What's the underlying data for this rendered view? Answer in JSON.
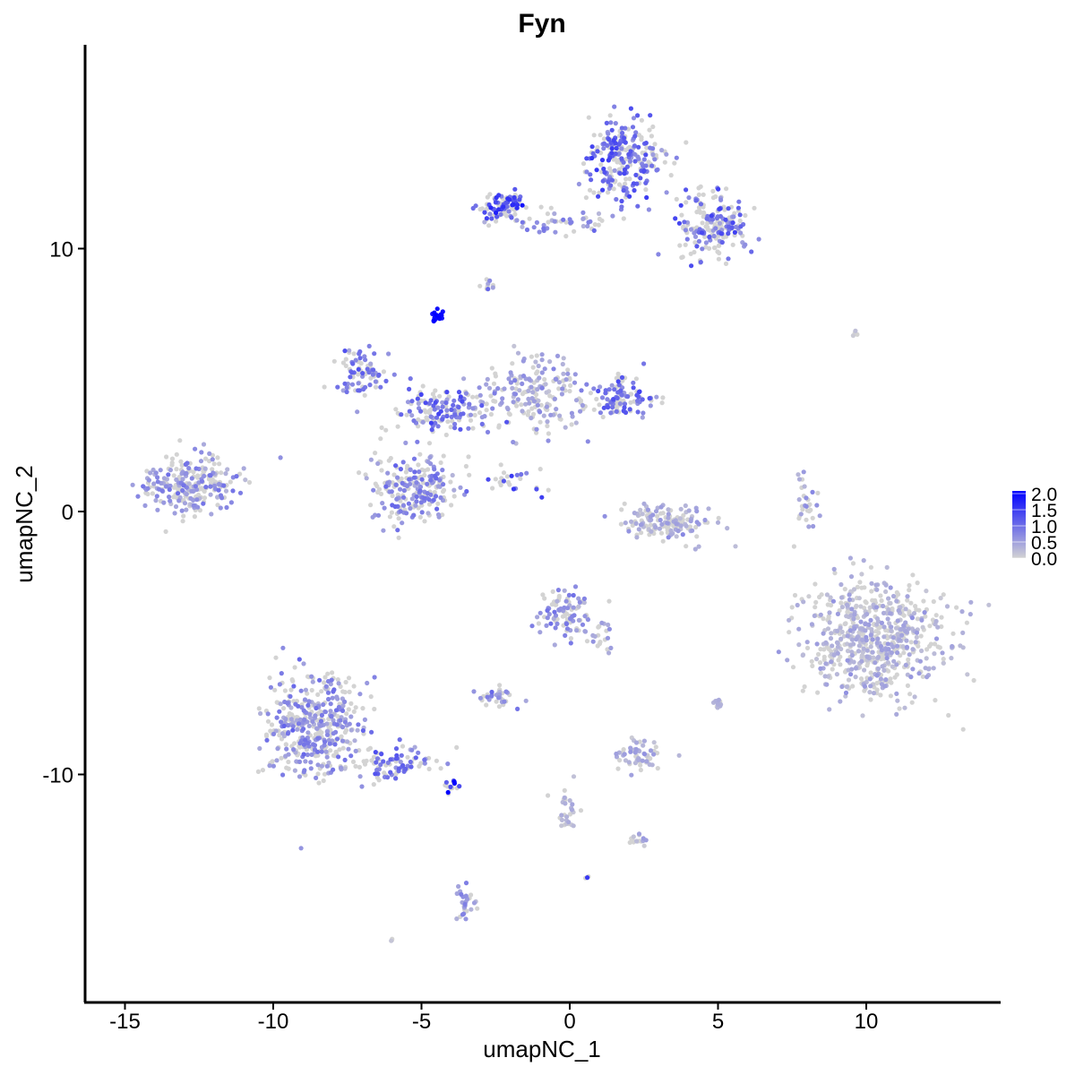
{
  "chart_data": {
    "type": "scatter",
    "title": "Fyn",
    "xlabel": "umapNC_1",
    "ylabel": "umapNC_2",
    "xlim": [
      -16.2,
      14.5
    ],
    "ylim": [
      -18.5,
      17.8
    ],
    "xticks": [
      -15,
      -10,
      -5,
      0,
      5,
      10
    ],
    "xtick_labels": [
      "-15",
      "-10",
      "-5",
      "0",
      "5",
      "10"
    ],
    "yticks": [
      -10,
      0,
      10
    ],
    "ytick_labels": [
      "-10",
      "0",
      "10"
    ],
    "grid": false,
    "legend": {
      "placement": "right",
      "type": "colorbar",
      "range": [
        0,
        2.0
      ],
      "ticks": [
        "0.0",
        "0.5",
        "1.0",
        "1.5",
        "2.0"
      ],
      "low_color": "#d3d3d3",
      "high_color": "#0000ff"
    },
    "clusters": [
      {
        "center": [
          -12.8,
          1.0
        ],
        "spread": [
          1.0,
          0.65
        ],
        "n": 260,
        "mean_expression": 0.55
      },
      {
        "center": [
          1.9,
          13.4
        ],
        "spread": [
          0.8,
          1.0
        ],
        "n": 260,
        "mean_expression": 0.9
      },
      {
        "center": [
          4.8,
          10.9
        ],
        "spread": [
          0.8,
          0.8
        ],
        "n": 200,
        "mean_expression": 0.85
      },
      {
        "center": [
          -2.3,
          11.6
        ],
        "spread": [
          0.5,
          0.35
        ],
        "n": 90,
        "mean_expression": 1.15
      },
      {
        "center": [
          -0.2,
          11.0
        ],
        "spread": [
          1.3,
          0.25
        ],
        "n": 50,
        "mean_expression": 0.6
      },
      {
        "center": [
          -4.5,
          7.4
        ],
        "spread": [
          0.15,
          0.15
        ],
        "n": 25,
        "mean_expression": 2.0
      },
      {
        "center": [
          -7.0,
          5.3
        ],
        "spread": [
          0.6,
          0.6
        ],
        "n": 80,
        "mean_expression": 0.8
      },
      {
        "center": [
          -4.3,
          3.8
        ],
        "spread": [
          1.0,
          0.5
        ],
        "n": 150,
        "mean_expression": 0.85
      },
      {
        "center": [
          -5.2,
          0.9
        ],
        "spread": [
          0.9,
          0.85
        ],
        "n": 230,
        "mean_expression": 0.65
      },
      {
        "center": [
          -1.2,
          4.5
        ],
        "spread": [
          1.0,
          0.9
        ],
        "n": 190,
        "mean_expression": 0.45
      },
      {
        "center": [
          1.6,
          4.3
        ],
        "spread": [
          0.8,
          0.5
        ],
        "n": 110,
        "mean_expression": 0.85
      },
      {
        "center": [
          -1.8,
          1.2
        ],
        "spread": [
          0.6,
          0.4
        ],
        "n": 25,
        "mean_expression": 1.0
      },
      {
        "center": [
          3.3,
          -0.5
        ],
        "spread": [
          0.9,
          0.45
        ],
        "n": 150,
        "mean_expression": 0.35
      },
      {
        "center": [
          8.0,
          0.4
        ],
        "spread": [
          0.2,
          0.6
        ],
        "n": 30,
        "mean_expression": 0.4
      },
      {
        "center": [
          10.3,
          -4.9
        ],
        "spread": [
          1.45,
          1.4
        ],
        "n": 650,
        "mean_expression": 0.3
      },
      {
        "center": [
          -8.6,
          -8.2
        ],
        "spread": [
          1.0,
          1.2
        ],
        "n": 420,
        "mean_expression": 0.6
      },
      {
        "center": [
          -5.8,
          -9.6
        ],
        "spread": [
          1.0,
          0.45
        ],
        "n": 90,
        "mean_expression": 0.8
      },
      {
        "center": [
          -4.0,
          -10.4
        ],
        "spread": [
          0.15,
          0.15
        ],
        "n": 15,
        "mean_expression": 1.5
      },
      {
        "center": [
          -0.2,
          -3.8
        ],
        "spread": [
          0.5,
          0.6
        ],
        "n": 100,
        "mean_expression": 0.6
      },
      {
        "center": [
          1.0,
          -4.8
        ],
        "spread": [
          0.3,
          0.4
        ],
        "n": 20,
        "mean_expression": 0.5
      },
      {
        "center": [
          -2.4,
          -7.0
        ],
        "spread": [
          0.35,
          0.25
        ],
        "n": 35,
        "mean_expression": 0.6
      },
      {
        "center": [
          2.4,
          -9.3
        ],
        "spread": [
          0.45,
          0.35
        ],
        "n": 60,
        "mean_expression": 0.35
      },
      {
        "center": [
          5.0,
          -7.3
        ],
        "spread": [
          0.1,
          0.15
        ],
        "n": 15,
        "mean_expression": 0.3
      },
      {
        "center": [
          -0.2,
          -11.4
        ],
        "spread": [
          0.3,
          0.5
        ],
        "n": 30,
        "mean_expression": 0.2
      },
      {
        "center": [
          2.3,
          -12.5
        ],
        "spread": [
          0.2,
          0.15
        ],
        "n": 15,
        "mean_expression": 0.35
      },
      {
        "center": [
          -3.5,
          -14.9
        ],
        "spread": [
          0.2,
          0.6
        ],
        "n": 30,
        "mean_expression": 0.5
      },
      {
        "center": [
          -2.8,
          8.6
        ],
        "spread": [
          0.15,
          0.15
        ],
        "n": 10,
        "mean_expression": 0.7
      },
      {
        "center": [
          9.7,
          6.8
        ],
        "spread": [
          0.2,
          0.1
        ],
        "n": 4,
        "mean_expression": 0.1
      },
      {
        "center": [
          -6.0,
          -16.3
        ],
        "spread": [
          0.05,
          0.05
        ],
        "n": 3,
        "mean_expression": 0.0
      },
      {
        "center": [
          0.6,
          -13.9
        ],
        "spread": [
          0.05,
          0.05
        ],
        "n": 3,
        "mean_expression": 1.5
      }
    ]
  }
}
